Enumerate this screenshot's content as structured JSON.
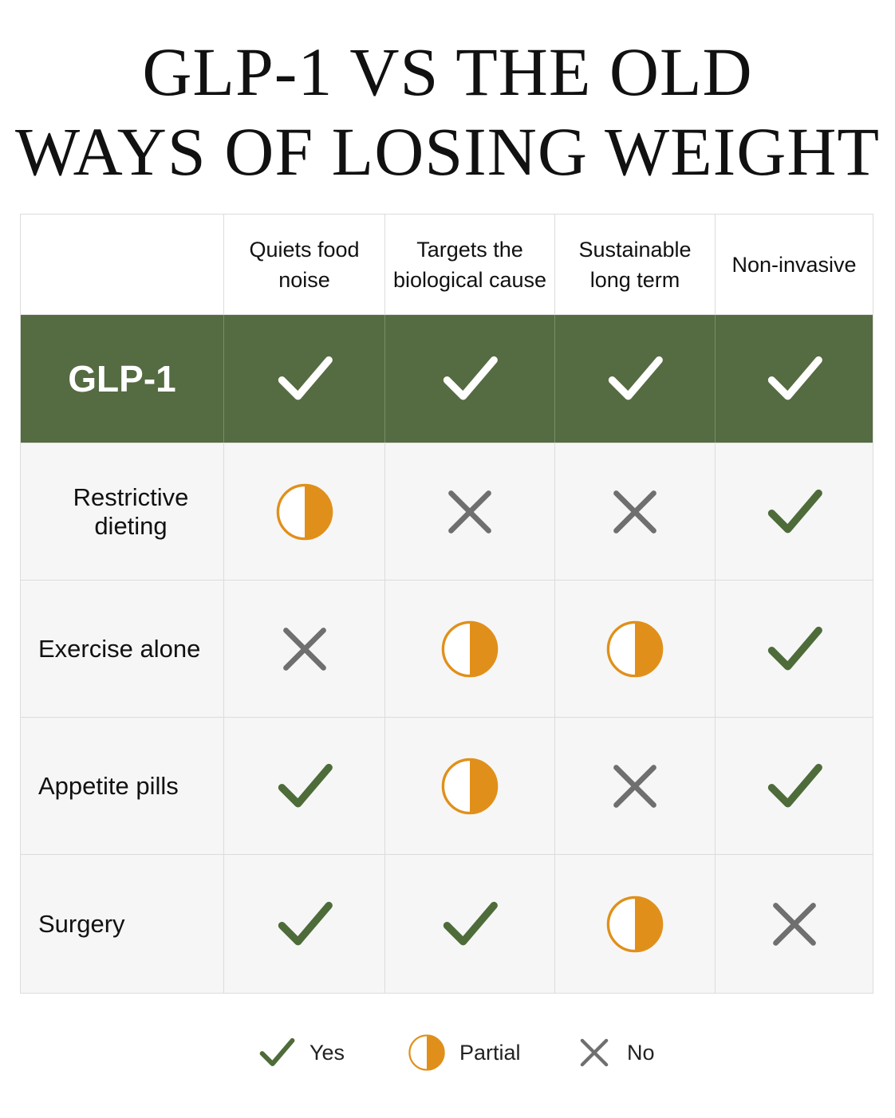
{
  "title": [
    "GLP-1 VS THE OLD",
    "WAYS OF LOSING WEIGHT"
  ],
  "colors": {
    "highlight_row": "#556b42",
    "yes": "#4e6b3a",
    "partial": "#e0901a",
    "no": "#6f6f6f"
  },
  "chart_data": {
    "type": "table",
    "columns": [
      "Quiets food noise",
      "Targets the biological cause",
      "Sustainable long term",
      "Non-invasive"
    ],
    "columns_lines": [
      [
        "Quiets food",
        "noise"
      ],
      [
        "Targets the",
        "biological cause"
      ],
      [
        "Sustainable",
        "long term"
      ],
      [
        "Non-invasive"
      ]
    ],
    "rows": [
      {
        "label": "GLP-1",
        "highlight": true,
        "values": [
          "yes",
          "yes",
          "yes",
          "yes"
        ]
      },
      {
        "label": "Restrictive dieting",
        "values": [
          "partial",
          "no",
          "no",
          "yes"
        ]
      },
      {
        "label": "Exercise alone",
        "values": [
          "no",
          "partial",
          "partial",
          "yes"
        ]
      },
      {
        "label": "Appetite pills",
        "values": [
          "yes",
          "partial",
          "no",
          "yes"
        ]
      },
      {
        "label": "Surgery",
        "values": [
          "yes",
          "yes",
          "partial",
          "no"
        ]
      }
    ],
    "legend": [
      {
        "symbol": "yes",
        "label": "Yes",
        "icon": "check-icon"
      },
      {
        "symbol": "partial",
        "label": "Partial",
        "icon": "half-circle-icon"
      },
      {
        "symbol": "no",
        "label": "No",
        "icon": "cross-icon"
      }
    ]
  }
}
